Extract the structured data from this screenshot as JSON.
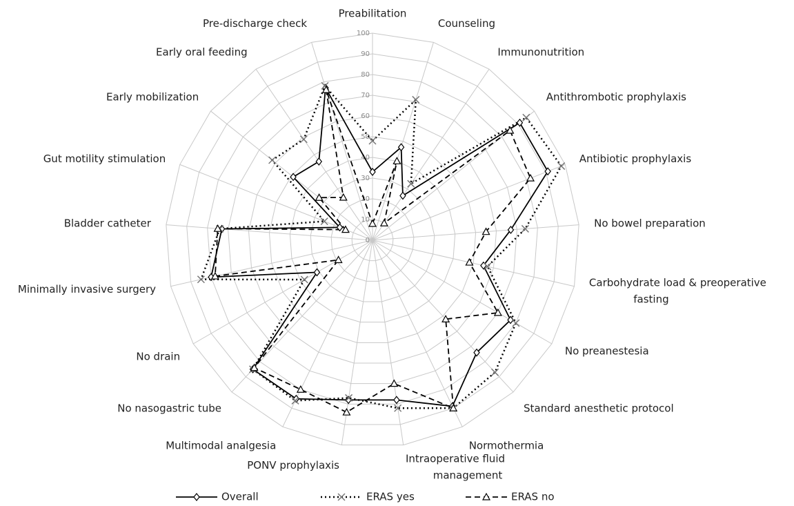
{
  "chart_data": {
    "type": "radar",
    "categories": [
      "Preabilitation",
      "Counseling",
      "Immunonutrition",
      "Antithrombotic prophylaxis",
      "Antibiotic prophylaxis",
      "No bowel preparation",
      "Carbohydrate load & preoperative fasting",
      "No preanestesia",
      "Standard anesthetic protocol",
      "Normothermia",
      "Intraoperative fluid management",
      "PONV prophylaxis",
      "Multimodal analgesia",
      "No nasogastric tube",
      "No drain",
      "Minimally invasive surgery",
      "Bladder catheter",
      "Gut motility stimulation",
      "Early mobilization",
      "Early oral feeding",
      "Pre-discharge check"
    ],
    "series": [
      {
        "name": "Overall",
        "color": "#000000",
        "line": "solid",
        "marker": "diamond",
        "values": [
          33,
          47,
          26,
          91,
          91,
          67,
          55,
          77,
          74,
          89,
          78,
          78,
          85,
          85,
          31,
          80,
          73,
          17,
          49,
          46,
          77
        ]
      },
      {
        "name": "ERAS yes",
        "color": "#000000",
        "line": "dotted",
        "marker": "x",
        "values": [
          48,
          71,
          33,
          95,
          98,
          74,
          57,
          80,
          87,
          90,
          82,
          77,
          86,
          85,
          38,
          85,
          74,
          25,
          62,
          59,
          78
        ]
      },
      {
        "name": "ERAS no",
        "color": "#000000",
        "line": "dashed",
        "marker": "triangle",
        "values": [
          8,
          40,
          10,
          85,
          82,
          55,
          48,
          70,
          52,
          90,
          70,
          84,
          80,
          84,
          19,
          78,
          75,
          14,
          33,
          25,
          76
        ]
      }
    ],
    "rlim": [
      0,
      100
    ],
    "rticks": [
      0,
      10,
      20,
      30,
      40,
      50,
      60,
      70,
      80,
      90,
      100
    ],
    "grid": true,
    "legend": "bottom"
  }
}
